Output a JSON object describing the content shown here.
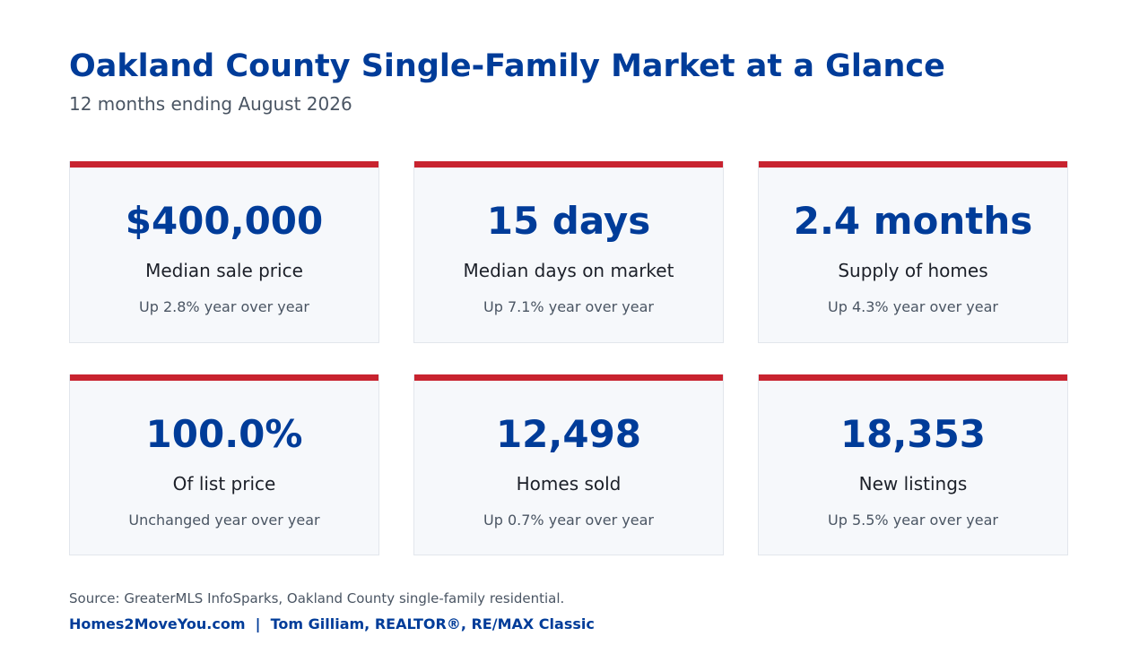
{
  "header": {
    "title": "Oakland County Single-Family Market at a Glance",
    "subtitle": "12 months ending August 2026"
  },
  "colors": {
    "title": "#003C99",
    "accent_bar": "#c8232f",
    "card_background": "#f6f8fb",
    "muted_text": "#4a5563"
  },
  "cards": [
    {
      "value": "$400,000",
      "label": "Median sale price",
      "change": "Up 2.8% year over year"
    },
    {
      "value": "15 days",
      "label": "Median days on market",
      "change": "Up 7.1% year over year"
    },
    {
      "value": "2.4 months",
      "label": "Supply of homes",
      "change": "Up 4.3% year over year"
    },
    {
      "value": "100.0%",
      "label": "Of list price",
      "change": "Unchanged year over year"
    },
    {
      "value": "12,498",
      "label": "Homes sold",
      "change": "Up 0.7% year over year"
    },
    {
      "value": "18,353",
      "label": "New listings",
      "change": "Up 5.5% year over year"
    }
  ],
  "footer": {
    "source": "Source: GreaterMLS InfoSparks, Oakland County single-family residential.",
    "credit": "Homes2MoveYou.com  |  Tom Gilliam, REALTOR®, RE/MAX Classic"
  }
}
